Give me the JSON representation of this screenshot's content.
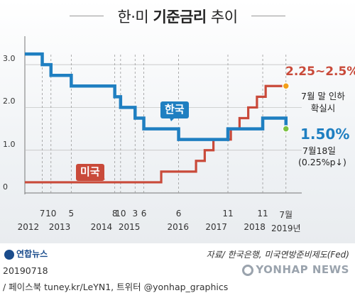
{
  "title": {
    "prefix": "한·미 ",
    "bold": "기준금리",
    "suffix": " 추이"
  },
  "badges": {
    "korea": "한국",
    "us": "미국"
  },
  "annotations": {
    "us_value": "2.25~2.5%",
    "us_note_line1": "7월 말 인하",
    "us_note_line2": "확실시",
    "korea_value": "1.50%",
    "korea_date": "7월18일",
    "korea_change": "(0.25%p↓)"
  },
  "colors": {
    "korea": "#1f7fc1",
    "us": "#c94a3a"
  },
  "chart_data": {
    "type": "line",
    "title": "한·미 기준금리 추이",
    "ylim": [
      0,
      3.5
    ],
    "yticks": [
      {
        "value": 0,
        "label": "0"
      },
      {
        "value": 1,
        "label": "1.0"
      },
      {
        "value": 2,
        "label": "2.0"
      },
      {
        "value": 3,
        "label": "3.0"
      }
    ],
    "xlim": [
      2012.0,
      2019.75
    ],
    "month_ticks": [
      {
        "x": 2012.5,
        "label": "7"
      },
      {
        "x": 2012.75,
        "label": "10"
      },
      {
        "x": 2013.333,
        "label": "5"
      },
      {
        "x": 2014.583,
        "label": "8"
      },
      {
        "x": 2014.75,
        "label": "10"
      },
      {
        "x": 2015.167,
        "label": "3"
      },
      {
        "x": 2015.417,
        "label": "6"
      },
      {
        "x": 2016.417,
        "label": "6"
      },
      {
        "x": 2017.833,
        "label": "11"
      },
      {
        "x": 2018.833,
        "label": "11"
      },
      {
        "x": 2019.5,
        "label": "7월"
      }
    ],
    "year_labels": [
      {
        "x": 2012.1,
        "label": "2012"
      },
      {
        "x": 2013.0,
        "label": "2013"
      },
      {
        "x": 2014.2,
        "label": "2014"
      },
      {
        "x": 2015.0,
        "label": "2015"
      },
      {
        "x": 2016.4,
        "label": "2016"
      },
      {
        "x": 2017.5,
        "label": "2017"
      },
      {
        "x": 2018.6,
        "label": "2018"
      },
      {
        "x": 2019.5,
        "label": "2019년"
      }
    ],
    "series": [
      {
        "name": "한국",
        "color": "#1f7fc1",
        "points": [
          [
            2012.0,
            3.25
          ],
          [
            2012.5,
            3.0
          ],
          [
            2012.75,
            2.75
          ],
          [
            2013.333,
            2.5
          ],
          [
            2014.583,
            2.25
          ],
          [
            2014.75,
            2.0
          ],
          [
            2015.167,
            1.75
          ],
          [
            2015.417,
            1.5
          ],
          [
            2016.417,
            1.25
          ],
          [
            2017.833,
            1.5
          ],
          [
            2018.833,
            1.75
          ],
          [
            2019.5,
            1.5
          ]
        ]
      },
      {
        "name": "미국",
        "color": "#c94a3a",
        "points": [
          [
            2012.0,
            0.25
          ],
          [
            2015.917,
            0.5
          ],
          [
            2016.917,
            0.75
          ],
          [
            2017.167,
            1.0
          ],
          [
            2017.417,
            1.25
          ],
          [
            2017.917,
            1.5
          ],
          [
            2018.167,
            1.75
          ],
          [
            2018.417,
            2.0
          ],
          [
            2018.667,
            2.25
          ],
          [
            2018.917,
            2.5
          ]
        ]
      }
    ]
  },
  "footer": {
    "logo": "연합뉴스",
    "source": "자료/ 한국은행, 미국연방준비제도(Fed)",
    "date_stamp": "20190718",
    "credits": "/ 페이스북 tuney.kr/LeYN1, 트위터 @yonhap_graphics",
    "watermark": "YONHAP NEWS"
  }
}
